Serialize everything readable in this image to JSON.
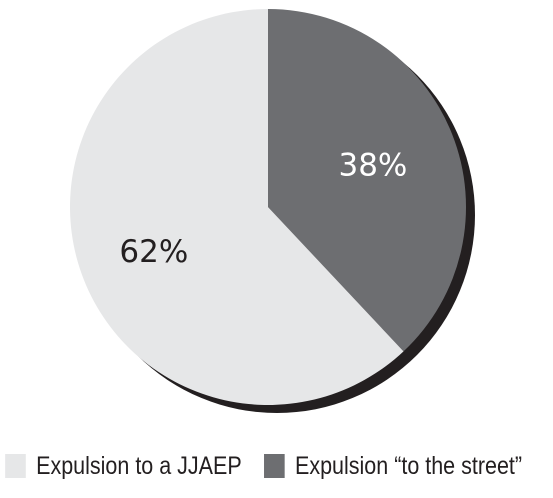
{
  "chart_data": {
    "type": "pie",
    "slices": [
      {
        "label": "Expulsion to a JJAEP",
        "value": 62,
        "value_label": "62%",
        "color": "#e6e7e8",
        "label_color": "#231f20"
      },
      {
        "label": "Expulsion “to the street”",
        "value": 38,
        "value_label": "38%",
        "color": "#6d6e71",
        "label_color": "#ffffff"
      }
    ],
    "shadow_color": "#231f20",
    "legend_position": "bottom",
    "title": ""
  },
  "legend": {
    "items": [
      {
        "label": "Expulsion to a JJAEP",
        "color": "#e6e7e8"
      },
      {
        "label": "Expulsion “to the street”",
        "color": "#6d6e71"
      }
    ]
  }
}
